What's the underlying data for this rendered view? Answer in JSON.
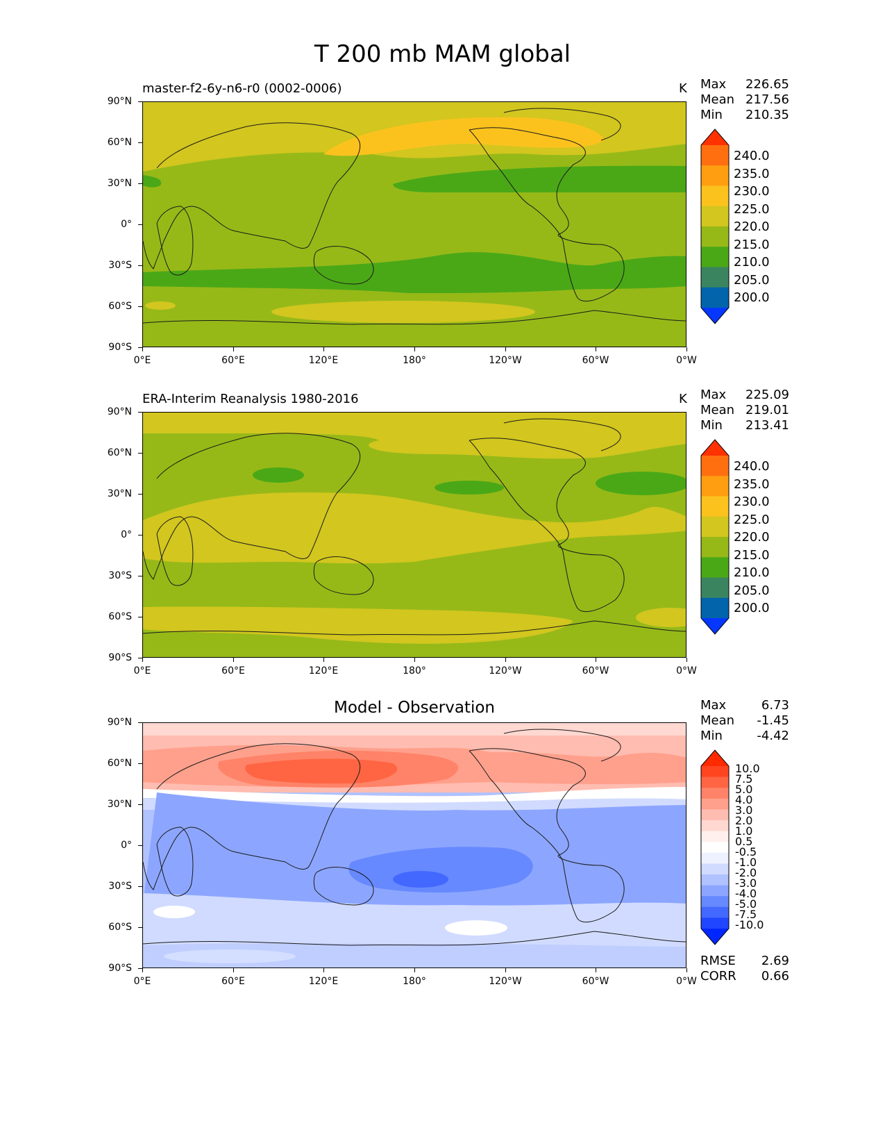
{
  "title": "T 200 mb MAM global",
  "lat_ticks": [
    "90°N",
    "60°N",
    "30°N",
    "0°",
    "30°S",
    "60°S",
    "90°S"
  ],
  "lon_ticks": [
    "0°E",
    "60°E",
    "120°E",
    "180°",
    "120°W",
    "60°W",
    "0°W"
  ],
  "panel_1": {
    "title": "master-f2-6y-n6-r0 (0002-0006)",
    "units": "K",
    "stats": {
      "max_label": "Max",
      "max": "226.65",
      "mean_label": "Mean",
      "mean": "217.56",
      "min_label": "Min",
      "min": "210.35"
    },
    "colorbar": {
      "labels": [
        "240.0",
        "235.0",
        "230.0",
        "225.0",
        "220.0",
        "215.0",
        "210.0",
        "205.0",
        "200.0"
      ],
      "colors": [
        "#ff3200",
        "#ff6f10",
        "#ff9e10",
        "#fbc21e",
        "#d2c61f",
        "#96b918",
        "#4aa817",
        "#3a8560",
        "#0264aa",
        "#0537ff"
      ]
    }
  },
  "panel_2": {
    "title": "ERA-Interim Reanalysis 1980-2016",
    "units": "K",
    "stats": {
      "max_label": "Max",
      "max": "225.09",
      "mean_label": "Mean",
      "mean": "219.01",
      "min_label": "Min",
      "min": "213.41"
    },
    "colorbar": {
      "labels": [
        "240.0",
        "235.0",
        "230.0",
        "225.0",
        "220.0",
        "215.0",
        "210.0",
        "205.0",
        "200.0"
      ],
      "colors": [
        "#ff3200",
        "#ff6f10",
        "#ff9e10",
        "#fbc21e",
        "#d2c61f",
        "#96b918",
        "#4aa817",
        "#3a8560",
        "#0264aa",
        "#0537ff"
      ]
    }
  },
  "panel_3": {
    "title": "Model - Observation",
    "stats": {
      "max_label": "Max",
      "max": "6.73",
      "mean_label": "Mean",
      "mean": "-1.45",
      "min_label": "Min",
      "min": "-4.42"
    },
    "colorbar": {
      "labels": [
        "10.0",
        "7.5",
        "5.0",
        "4.0",
        "3.0",
        "2.0",
        "1.0",
        "0.5",
        "-0.5",
        "-1.0",
        "-2.0",
        "-3.0",
        "-4.0",
        "-5.0",
        "-7.5",
        "-10.0"
      ],
      "colors": [
        "#ff2a00",
        "#ff4520",
        "#ff6543",
        "#ff8368",
        "#ffa08c",
        "#ffbcb0",
        "#ffd8d1",
        "#fff0ee",
        "#ffffff",
        "#eef1ff",
        "#d1dbff",
        "#b0c2ff",
        "#8ca6ff",
        "#6789ff",
        "#4368ff",
        "#2047ff",
        "#0027ff"
      ]
    },
    "metrics": {
      "rmse_label": "RMSE",
      "rmse": "2.69",
      "corr_label": "CORR",
      "corr": "0.66"
    }
  }
}
